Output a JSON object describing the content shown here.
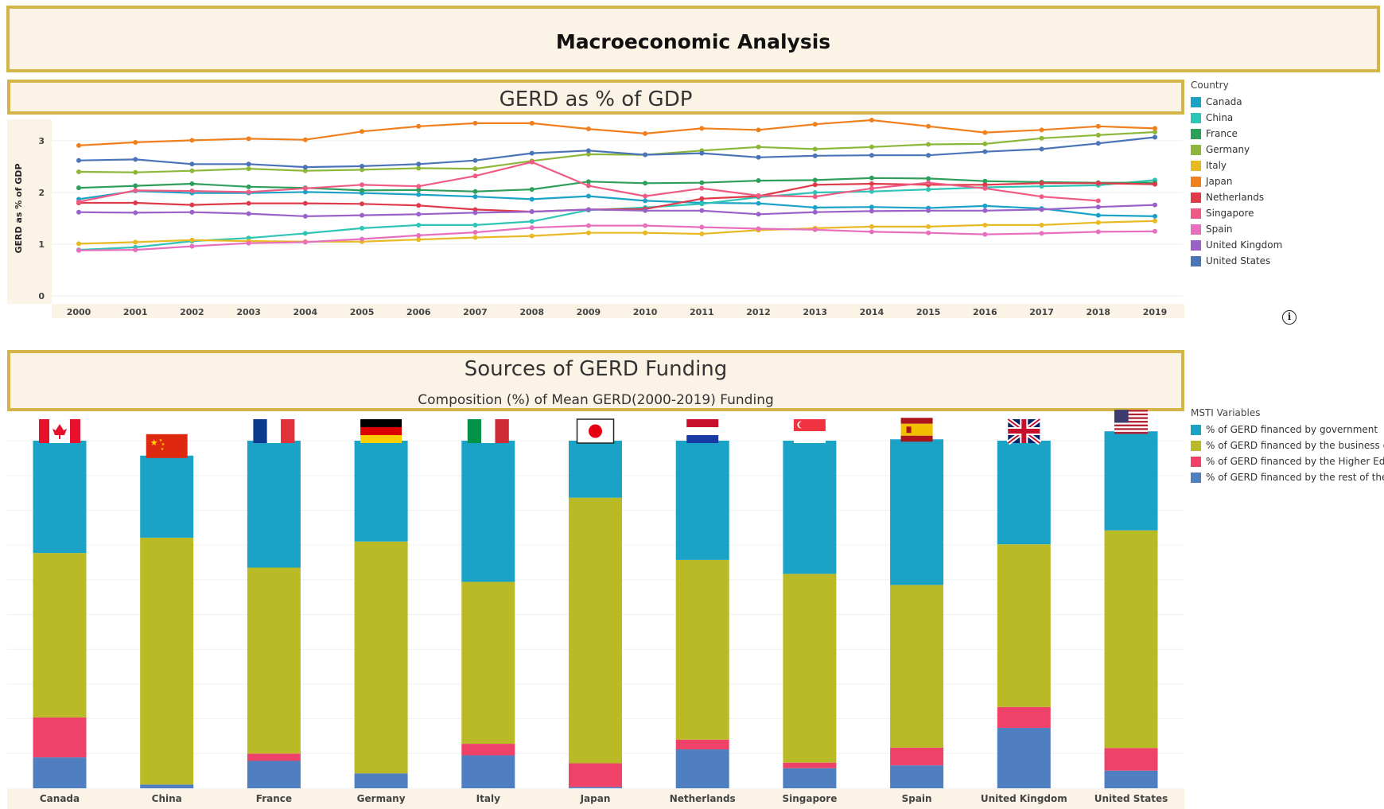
{
  "page_title": "Macroeconomic Analysis",
  "info_icon": "info-icon",
  "chart_data": [
    {
      "type": "line",
      "title": "GERD as % of GDP",
      "ylabel": "GERD as % of GDP",
      "xlabel": "",
      "ylim": [
        0,
        3.5
      ],
      "yticks": [
        "0",
        "1",
        "2",
        "3"
      ],
      "grid": true,
      "legend_position": "right",
      "legend_title": "Country",
      "x": [
        "2000",
        "2001",
        "2002",
        "2003",
        "2004",
        "2005",
        "2006",
        "2007",
        "2008",
        "2009",
        "2010",
        "2011",
        "2012",
        "2013",
        "2014",
        "2015",
        "2016",
        "2017",
        "2018",
        "2019"
      ],
      "series": [
        {
          "name": "Canada",
          "color": "#1ba2c7",
          "values": [
            1.87,
            2.03,
            1.99,
            1.99,
            2.01,
            1.99,
            1.96,
            1.92,
            1.87,
            1.93,
            1.84,
            1.8,
            1.79,
            1.71,
            1.72,
            1.7,
            1.74,
            1.69,
            1.56,
            1.54
          ]
        },
        {
          "name": "China",
          "color": "#2ec4b6",
          "values": [
            0.89,
            0.94,
            1.06,
            1.12,
            1.21,
            1.31,
            1.37,
            1.37,
            1.44,
            1.66,
            1.71,
            1.78,
            1.91,
            2.0,
            2.02,
            2.06,
            2.1,
            2.12,
            2.14,
            2.24
          ]
        },
        {
          "name": "France",
          "color": "#2e9e5b",
          "values": [
            2.09,
            2.13,
            2.17,
            2.11,
            2.09,
            2.04,
            2.05,
            2.02,
            2.06,
            2.21,
            2.18,
            2.19,
            2.23,
            2.24,
            2.28,
            2.27,
            2.22,
            2.2,
            2.19,
            2.19
          ]
        },
        {
          "name": "Germany",
          "color": "#8db73a",
          "values": [
            2.4,
            2.39,
            2.42,
            2.46,
            2.42,
            2.44,
            2.47,
            2.46,
            2.61,
            2.74,
            2.73,
            2.81,
            2.88,
            2.84,
            2.88,
            2.93,
            2.94,
            3.05,
            3.11,
            3.17
          ]
        },
        {
          "name": "Italy",
          "color": "#e8b923",
          "values": [
            1.01,
            1.04,
            1.08,
            1.06,
            1.05,
            1.05,
            1.09,
            1.13,
            1.16,
            1.22,
            1.22,
            1.2,
            1.27,
            1.31,
            1.34,
            1.34,
            1.37,
            1.37,
            1.42,
            1.45
          ]
        },
        {
          "name": "Japan",
          "color": "#f07f1e",
          "values": [
            2.91,
            2.97,
            3.01,
            3.04,
            3.02,
            3.18,
            3.28,
            3.34,
            3.34,
            3.23,
            3.14,
            3.24,
            3.21,
            3.32,
            3.4,
            3.28,
            3.16,
            3.21,
            3.28,
            3.24
          ]
        },
        {
          "name": "Netherlands",
          "color": "#de3a4a",
          "values": [
            1.8,
            1.8,
            1.76,
            1.79,
            1.79,
            1.78,
            1.75,
            1.67,
            1.63,
            1.67,
            1.68,
            1.88,
            1.93,
            2.15,
            2.17,
            2.15,
            2.15,
            2.18,
            2.18,
            2.16
          ]
        },
        {
          "name": "Singapore",
          "color": "#ef5b83",
          "values": [
            1.82,
            2.04,
            2.03,
            2.01,
            2.08,
            2.15,
            2.12,
            2.32,
            2.59,
            2.13,
            1.93,
            2.08,
            1.94,
            1.92,
            2.08,
            2.19,
            2.08,
            1.92,
            1.84,
            null
          ]
        },
        {
          "name": "Spain",
          "color": "#e76fbe",
          "values": [
            0.88,
            0.89,
            0.96,
            1.02,
            1.04,
            1.1,
            1.17,
            1.23,
            1.32,
            1.36,
            1.36,
            1.33,
            1.3,
            1.28,
            1.24,
            1.22,
            1.19,
            1.21,
            1.24,
            1.25
          ]
        },
        {
          "name": "United Kingdom",
          "color": "#9a62c9",
          "values": [
            1.62,
            1.61,
            1.62,
            1.59,
            1.54,
            1.56,
            1.58,
            1.61,
            1.63,
            1.67,
            1.65,
            1.65,
            1.58,
            1.62,
            1.64,
            1.65,
            1.65,
            1.67,
            1.72,
            1.76
          ]
        },
        {
          "name": "United States",
          "color": "#4b74b8",
          "values": [
            2.62,
            2.64,
            2.55,
            2.55,
            2.49,
            2.51,
            2.55,
            2.62,
            2.76,
            2.81,
            2.73,
            2.76,
            2.68,
            2.71,
            2.72,
            2.72,
            2.79,
            2.84,
            2.95,
            3.07
          ]
        }
      ]
    },
    {
      "type": "bar",
      "stacked": true,
      "title": "Sources of GERD Funding",
      "subtitle": "Composition (%) of Mean GERD(2000-2019) Funding",
      "legend_position": "right",
      "legend_title": "MSTI Variables",
      "categories": [
        "Canada",
        "China",
        "France",
        "Germany",
        "Italy",
        "Japan",
        "Netherlands",
        "Singapore",
        "Spain",
        "United Kingdom",
        "United States"
      ],
      "series": [
        {
          "name": "% of GERD financed by the rest of the ...",
          "color": "#4f7fc0",
          "values": [
            8.9,
            1.1,
            7.9,
            4.3,
            9.5,
            0.4,
            11.2,
            5.8,
            6.6,
            17.4,
            5.1
          ]
        },
        {
          "name": "% of GERD financed by the Higher Edu...",
          "color": "#ef4269",
          "values": [
            11.5,
            0,
            2.1,
            0,
            3.3,
            6.8,
            2.8,
            1.6,
            5.1,
            6.0,
            6.5
          ]
        },
        {
          "name": "% of GERD financed by the business e...",
          "color": "#b9ba25",
          "values": [
            47.3,
            71.0,
            53.5,
            66.7,
            46.6,
            76.4,
            51.7,
            54.3,
            46.8,
            46.8,
            62.6
          ]
        },
        {
          "name": "% of GERD financed by government",
          "color": "#1ba3c7",
          "values": [
            32.3,
            23.6,
            36.5,
            29.0,
            40.6,
            16.4,
            34.3,
            38.3,
            41.9,
            29.8,
            28.5
          ]
        }
      ],
      "legend_order": [
        "% of GERD financed by government",
        "% of GERD financed by the business e...",
        "% of GERD financed by the Higher Edu...",
        "% of GERD financed by the rest of the ..."
      ],
      "flags": [
        "flag-canada",
        "flag-china",
        "flag-france",
        "flag-germany",
        "flag-italy",
        "flag-japan",
        "flag-netherlands",
        "flag-singapore",
        "flag-spain",
        "flag-united-kingdom",
        "flag-united-states"
      ]
    }
  ]
}
